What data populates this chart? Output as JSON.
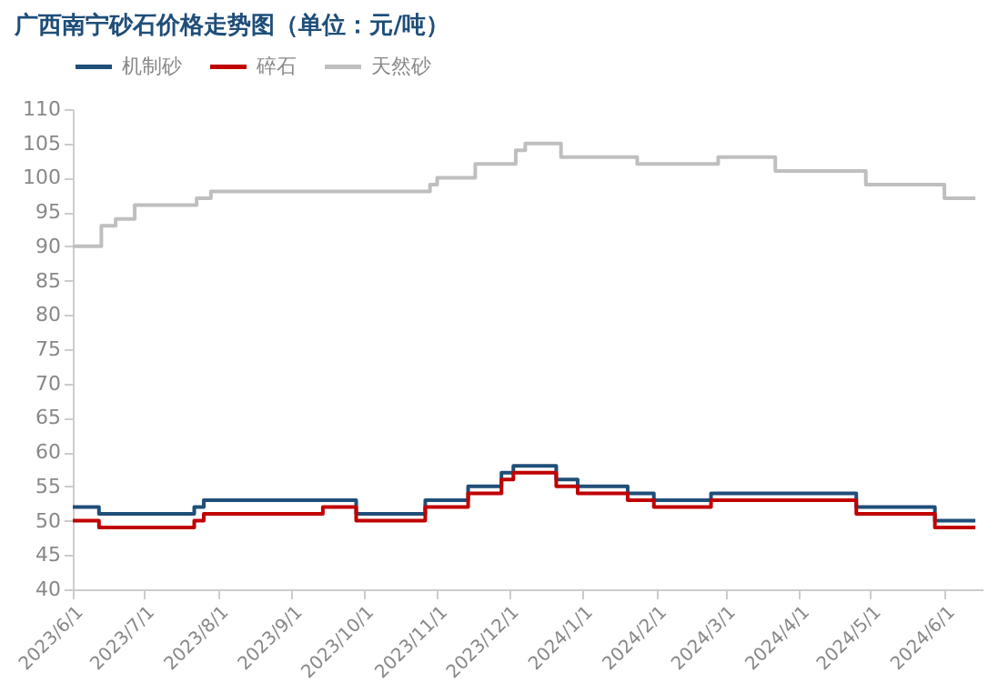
{
  "chart_data": {
    "type": "step",
    "title": "广西南宁砂石价格走势图（单位：元/吨）",
    "xlim": [
      "2023-06-01",
      "2024-06-17"
    ],
    "xticks": [
      {
        "value": "2023-06-01",
        "label": "2023/6/1"
      },
      {
        "value": "2023-07-01",
        "label": "2023/7/1"
      },
      {
        "value": "2023-08-01",
        "label": "2023/8/1"
      },
      {
        "value": "2023-09-01",
        "label": "2023/9/1"
      },
      {
        "value": "2023-10-01",
        "label": "2023/10/1"
      },
      {
        "value": "2023-11-01",
        "label": "2023/11/1"
      },
      {
        "value": "2023-12-01",
        "label": "2023/12/1"
      },
      {
        "value": "2024-01-01",
        "label": "2024/1/1"
      },
      {
        "value": "2024-02-01",
        "label": "2024/2/1"
      },
      {
        "value": "2024-03-01",
        "label": "2024/3/1"
      },
      {
        "value": "2024-04-01",
        "label": "2024/4/1"
      },
      {
        "value": "2024-05-01",
        "label": "2024/5/1"
      },
      {
        "value": "2024-06-01",
        "label": "2024/6/1"
      }
    ],
    "ylim": [
      40,
      110
    ],
    "yticks": [
      40,
      45,
      50,
      55,
      60,
      65,
      70,
      75,
      80,
      85,
      90,
      95,
      100,
      105,
      110
    ],
    "grid": false,
    "legend": "top",
    "marker": "none",
    "line_style": "solid",
    "series": [
      {
        "name": "机制砂",
        "color": "#1f4e79",
        "x": [
          "2023-06-01",
          "2023-06-12",
          "2023-07-22",
          "2023-07-26",
          "2023-09-28",
          "2023-10-27",
          "2023-11-14",
          "2023-11-28",
          "2023-12-03",
          "2023-12-21",
          "2023-12-30",
          "2024-01-20",
          "2024-01-31",
          "2024-02-24",
          "2024-04-25",
          "2024-05-28",
          "2024-06-14"
        ],
        "values": [
          52,
          51,
          52,
          53,
          51,
          53,
          55,
          57,
          58,
          56,
          55,
          54,
          53,
          54,
          52,
          50,
          50
        ]
      },
      {
        "name": "碎石",
        "color": "#c00000",
        "x": [
          "2023-06-01",
          "2023-06-12",
          "2023-07-22",
          "2023-07-26",
          "2023-09-14",
          "2023-09-28",
          "2023-10-27",
          "2023-11-14",
          "2023-11-28",
          "2023-12-03",
          "2023-12-21",
          "2023-12-30",
          "2024-01-20",
          "2024-01-31",
          "2024-02-24",
          "2024-04-25",
          "2024-05-28",
          "2024-06-14"
        ],
        "values": [
          50,
          49,
          50,
          51,
          52,
          50,
          52,
          54,
          56,
          57,
          55,
          54,
          53,
          52,
          53,
          51,
          49,
          49
        ]
      },
      {
        "name": "天然砂",
        "color": "#bfbfbf",
        "x": [
          "2023-06-01",
          "2023-06-13",
          "2023-06-19",
          "2023-06-27",
          "2023-07-23",
          "2023-07-29",
          "2023-10-29",
          "2023-11-01",
          "2023-11-17",
          "2023-12-04",
          "2023-12-08",
          "2023-12-23",
          "2024-01-24",
          "2024-02-27",
          "2024-03-22",
          "2024-04-29",
          "2024-06-01",
          "2024-06-14"
        ],
        "values": [
          90,
          93,
          94,
          96,
          97,
          98,
          99,
          100,
          102,
          104,
          105,
          103,
          102,
          103,
          101,
          99,
          97,
          97
        ]
      }
    ]
  }
}
